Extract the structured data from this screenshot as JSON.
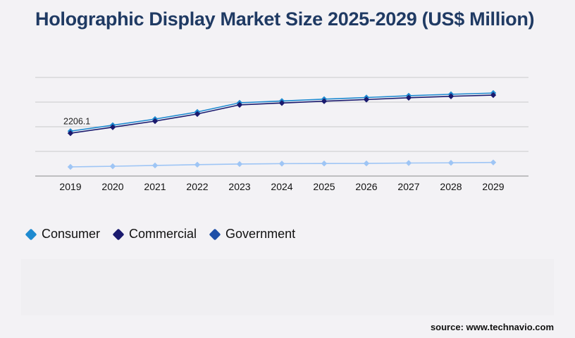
{
  "title": "Holographic Display Market Size 2025-2029 (US$ Million)",
  "source": "source: www.technavio.com",
  "chart_data": {
    "type": "line",
    "title": "Holographic Display Market Size 2025-2029 (US$ Million)",
    "x": [
      "2019",
      "2020",
      "2021",
      "2022",
      "2023",
      "2024",
      "2025",
      "2026",
      "2027",
      "2028",
      "2029"
    ],
    "series": [
      {
        "name": "Consumer",
        "color": "#1e8ad0",
        "values": [
          2206.1,
          2500,
          2800,
          3150,
          3600,
          3690,
          3780,
          3860,
          3950,
          4020,
          4080
        ]
      },
      {
        "name": "Commercial",
        "color": "#1a1a6e",
        "values": [
          2106.1,
          2400,
          2700,
          3050,
          3500,
          3590,
          3680,
          3760,
          3850,
          3920,
          3980
        ]
      },
      {
        "name": "Government",
        "color": "#9ec5f5",
        "values": [
          450,
          480,
          520,
          560,
          590,
          610,
          615,
          620,
          640,
          650,
          670
        ]
      }
    ],
    "data_labels": [
      {
        "series": "Consumer",
        "x": "2019",
        "text": "2206.1"
      }
    ],
    "ylim": [
      0,
      4500
    ],
    "yticks": [
      0,
      1000,
      2000,
      3000,
      4000
    ],
    "grid": true,
    "legend": "bottom-left",
    "xlabel": "",
    "ylabel": ""
  }
}
